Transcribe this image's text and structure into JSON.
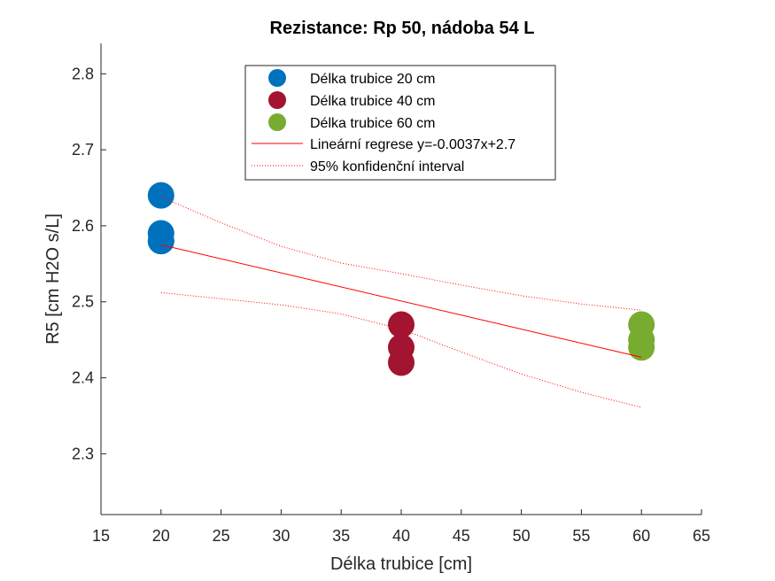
{
  "chart_data": {
    "type": "scatter",
    "title": "Rezistance: Rp 50, nádoba 54 L",
    "xlabel": "Délka trubice [cm]",
    "ylabel": "R5 [cm H2O s/L]",
    "xlim": [
      15,
      65
    ],
    "ylim": [
      2.22,
      2.84
    ],
    "xticks": [
      15,
      20,
      25,
      30,
      35,
      40,
      45,
      50,
      55,
      60,
      65
    ],
    "yticks": [
      2.3,
      2.4,
      2.5,
      2.6,
      2.7,
      2.8
    ],
    "xtick_labels": [
      "15",
      "20",
      "25",
      "30",
      "35",
      "40",
      "45",
      "50",
      "55",
      "60",
      "65"
    ],
    "ytick_labels": [
      "2.3",
      "2.4",
      "2.5",
      "2.6",
      "2.7",
      "2.8"
    ],
    "series": [
      {
        "name": "Délka trubice 20 cm",
        "color": "#0072BD",
        "x": [
          20,
          20,
          20,
          20
        ],
        "y": [
          2.64,
          2.59,
          2.58,
          2.58
        ]
      },
      {
        "name": "Délka trubice 40 cm",
        "color": "#A2142F",
        "x": [
          40,
          40,
          40
        ],
        "y": [
          2.47,
          2.44,
          2.42
        ]
      },
      {
        "name": "Délka trubice 60 cm",
        "color": "#77AC30",
        "x": [
          60,
          60,
          60
        ],
        "y": [
          2.47,
          2.45,
          2.44
        ]
      }
    ],
    "regression": {
      "name": "Lineární regrese y=-0.0037x+2.7",
      "color": "#FF0000",
      "x": [
        20,
        60
      ],
      "y": [
        2.575,
        2.427
      ]
    },
    "confidence_interval": {
      "name": "95% konfidenční interval",
      "color": "#FF0000",
      "x": [
        20,
        25,
        30,
        35,
        40,
        45,
        50,
        55,
        60
      ],
      "upper": [
        2.638,
        2.604,
        2.573,
        2.551,
        2.537,
        2.522,
        2.508,
        2.497,
        2.489
      ],
      "lower": [
        2.512,
        2.504,
        2.496,
        2.484,
        2.464,
        2.434,
        2.405,
        2.381,
        2.361
      ]
    },
    "legend_position": "top-center",
    "grid": false
  }
}
